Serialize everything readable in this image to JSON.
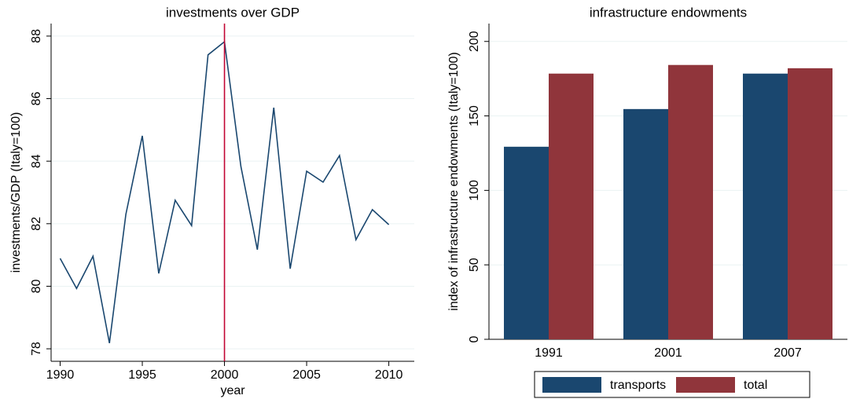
{
  "chart_data": [
    {
      "type": "line",
      "title": "investments over GDP",
      "x_label": "year",
      "y_label": "investments/GDP (Italy=100)",
      "x": [
        1990,
        1991,
        1992,
        1993,
        1994,
        1995,
        1996,
        1997,
        1998,
        1999,
        2000,
        2001,
        2002,
        2003,
        2004,
        2005,
        2006,
        2007,
        2008,
        2009,
        2010
      ],
      "series": [
        {
          "name": "investments/GDP",
          "color": "#1a476f",
          "values": [
            80.89,
            79.93,
            80.96,
            78.18,
            82.3,
            84.81,
            80.41,
            82.75,
            81.94,
            87.4,
            87.82,
            83.83,
            81.17,
            85.71,
            80.56,
            83.68,
            83.33,
            84.18,
            81.49,
            82.45,
            81.97
          ]
        }
      ],
      "xlim": [
        1989.45,
        2011.55
      ],
      "xticks": [
        1990,
        1995,
        2000,
        2005,
        2010
      ],
      "ylim": [
        77.6,
        88.4
      ],
      "yticks": [
        78,
        80,
        82,
        84,
        86,
        88
      ],
      "xline": 2000,
      "xline_color": "#c10534",
      "grid": true
    },
    {
      "type": "bar",
      "title": "infrastructure endowments",
      "y_label": "index of infrastructure endowments (Italy=100)",
      "categories": [
        "1991",
        "2001",
        "2007"
      ],
      "series": [
        {
          "name": "transports",
          "color": "#1a476f",
          "values": [
            129.3,
            154.6,
            178.4
          ]
        },
        {
          "name": "total",
          "color": "#90353b",
          "values": [
            178.4,
            184.2,
            182.0
          ]
        }
      ],
      "ylim": [
        0,
        212
      ],
      "yticks": [
        0,
        50,
        100,
        150,
        200
      ],
      "grid": true,
      "legend": "bottom"
    }
  ]
}
